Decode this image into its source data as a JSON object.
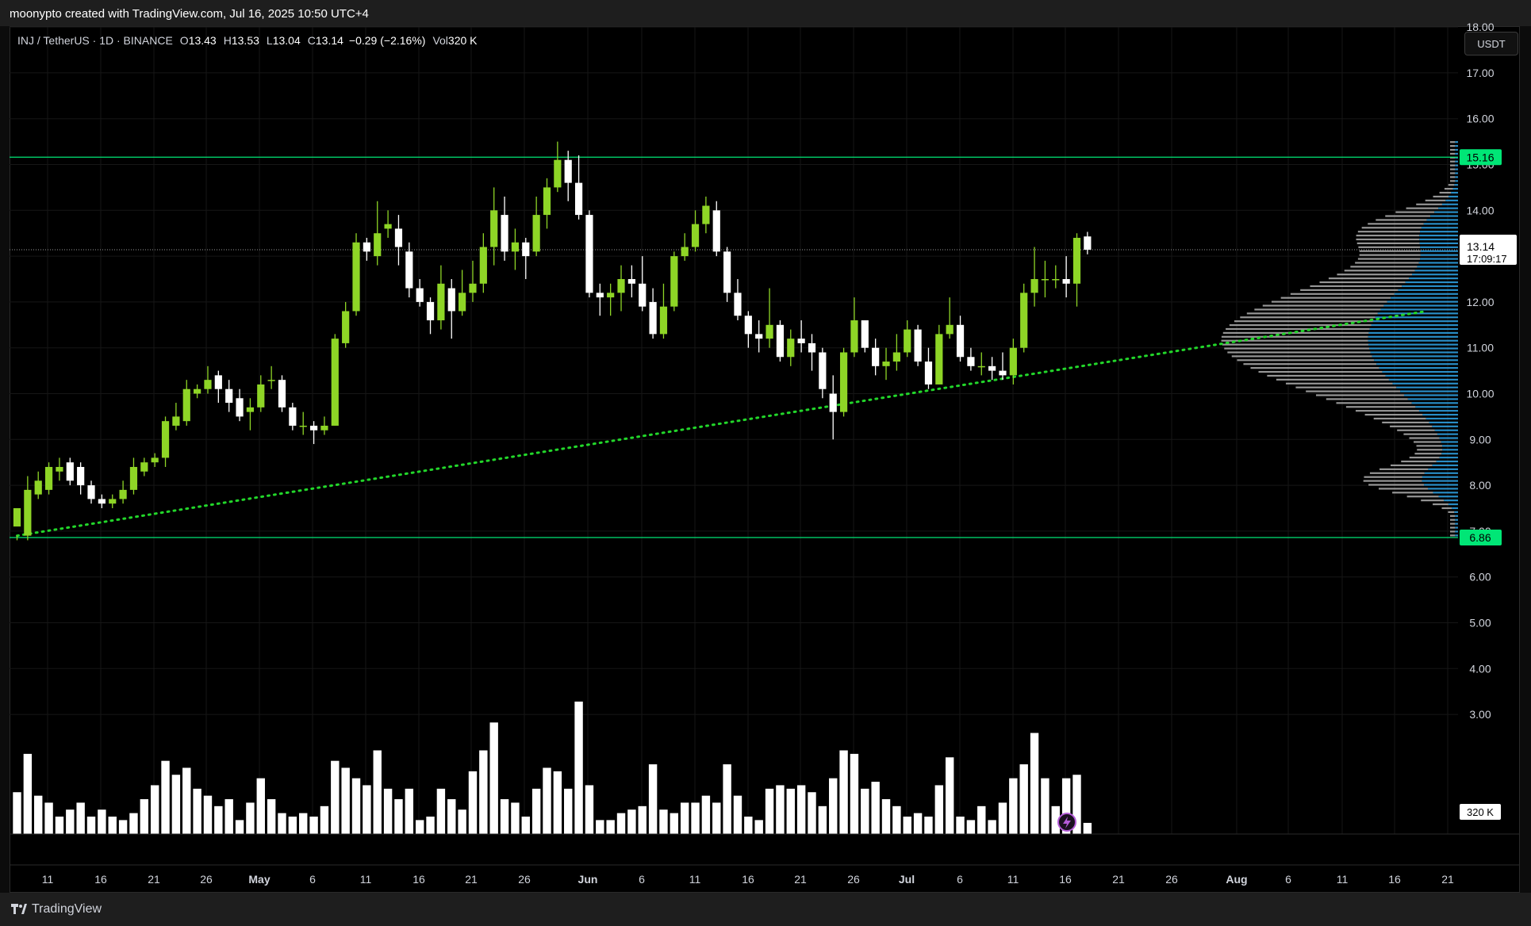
{
  "topbar": {
    "caption": "moonypto created with TradingView.com, Jul 16, 2025 10:50 UTC+4"
  },
  "legend": {
    "symbol": "INJ / TetherUS · 1D · BINANCE",
    "o_label": "O",
    "o": "13.43",
    "h_label": "H",
    "h": "13.53",
    "l_label": "L",
    "l": "13.04",
    "c_label": "C",
    "c": "13.14",
    "change": "−0.29 (−2.16%)",
    "vol_label": "Vol",
    "vol": "320 K"
  },
  "currency_button": "USDT",
  "footer": {
    "brand": "TradingView",
    "logo_icon": "tradingview-logo-icon"
  },
  "colors": {
    "up": "#8ed526",
    "down": "#ffffff",
    "level": "#00e676",
    "trend": "#22d62a",
    "vp_blue": "#2d9cdb",
    "vp_gray": "#b0b0b0"
  },
  "chart_data": {
    "type": "candlestick",
    "y_axis": {
      "ticks": [
        "18.00",
        "17.00",
        "16.00",
        "15.00",
        "14.00",
        "13.00",
        "12.00",
        "11.00",
        "10.00",
        "9.00",
        "8.00",
        "7.00",
        "6.00",
        "5.00",
        "4.00",
        "3.00"
      ],
      "range": [
        2.0,
        18.7
      ]
    },
    "x_axis": {
      "labels": [
        "11",
        "16",
        "21",
        "26",
        "May",
        "6",
        "11",
        "16",
        "21",
        "26",
        "Jun",
        "6",
        "11",
        "16",
        "21",
        "26",
        "Jul",
        "6",
        "11",
        "16",
        "21",
        "26",
        "Aug",
        "6",
        "11",
        "16",
        "21"
      ]
    },
    "price_labels": {
      "resistance": "15.16",
      "support": "6.86",
      "last": "13.14",
      "countdown": "17:09:17",
      "volume": "320 K"
    },
    "levels": [
      {
        "name": "resistance",
        "value": 15.16
      },
      {
        "name": "support",
        "value": 6.86
      }
    ],
    "trendline": {
      "from": {
        "date": "Apr 8",
        "value": 6.9
      },
      "to": {
        "date": "Aug 19",
        "value": 11.8
      }
    },
    "last_price": 13.14,
    "volume_max": 5.8,
    "candles": [
      [
        7.1,
        7.5,
        6.9,
        6.8,
        1.2
      ],
      [
        6.9,
        7.9,
        8.2,
        6.8,
        2.3
      ],
      [
        7.8,
        8.1,
        8.3,
        7.7,
        1.1
      ],
      [
        7.9,
        8.4,
        8.5,
        7.8,
        0.9
      ],
      [
        8.3,
        8.4,
        8.6,
        8.1,
        0.5
      ],
      [
        8.5,
        8.1,
        8.6,
        8.0,
        0.7
      ],
      [
        8.4,
        8.0,
        8.5,
        7.8,
        0.9
      ],
      [
        8.0,
        7.7,
        8.1,
        7.6,
        0.5
      ],
      [
        7.7,
        7.6,
        7.8,
        7.5,
        0.7
      ],
      [
        7.6,
        7.7,
        7.8,
        7.5,
        0.5
      ],
      [
        7.7,
        7.9,
        8.1,
        7.6,
        0.4
      ],
      [
        7.9,
        8.4,
        8.6,
        7.8,
        0.6
      ],
      [
        8.3,
        8.5,
        8.6,
        8.2,
        1.0
      ],
      [
        8.5,
        8.6,
        8.7,
        8.4,
        1.4
      ],
      [
        8.6,
        9.4,
        9.5,
        8.4,
        2.1
      ],
      [
        9.3,
        9.5,
        9.8,
        9.2,
        1.7
      ],
      [
        9.4,
        10.1,
        10.3,
        9.3,
        1.9
      ],
      [
        10.0,
        10.1,
        10.2,
        9.9,
        1.3
      ],
      [
        10.1,
        10.3,
        10.6,
        10.0,
        1.1
      ],
      [
        10.4,
        10.1,
        10.5,
        9.8,
        0.8
      ],
      [
        10.1,
        9.8,
        10.3,
        9.6,
        1.0
      ],
      [
        9.9,
        9.5,
        10.1,
        9.4,
        0.4
      ],
      [
        9.6,
        9.7,
        9.9,
        9.2,
        0.9
      ],
      [
        9.7,
        10.2,
        10.4,
        9.6,
        1.6
      ],
      [
        10.3,
        10.3,
        10.6,
        10.1,
        1.0
      ],
      [
        10.3,
        9.7,
        10.4,
        9.6,
        0.6
      ],
      [
        9.7,
        9.3,
        9.8,
        9.2,
        0.5
      ],
      [
        9.3,
        9.3,
        9.6,
        9.1,
        0.6
      ],
      [
        9.3,
        9.2,
        9.4,
        8.9,
        0.5
      ],
      [
        9.2,
        9.3,
        9.5,
        9.1,
        0.8
      ],
      [
        9.3,
        11.2,
        11.3,
        9.3,
        2.1
      ],
      [
        11.1,
        11.8,
        12.0,
        11.0,
        1.9
      ],
      [
        11.8,
        13.3,
        13.5,
        11.7,
        1.6
      ],
      [
        13.3,
        13.1,
        13.4,
        12.9,
        1.4
      ],
      [
        13.0,
        13.5,
        14.2,
        12.8,
        2.4
      ],
      [
        13.6,
        13.7,
        14.0,
        13.4,
        1.3
      ],
      [
        13.6,
        13.2,
        13.9,
        12.8,
        1.0
      ],
      [
        13.1,
        12.3,
        13.3,
        12.1,
        1.3
      ],
      [
        12.3,
        12.0,
        12.5,
        11.9,
        0.4
      ],
      [
        12.0,
        11.6,
        12.1,
        11.3,
        0.5
      ],
      [
        11.6,
        12.4,
        12.8,
        11.4,
        1.3
      ],
      [
        12.3,
        11.8,
        12.5,
        11.2,
        1.0
      ],
      [
        11.8,
        12.2,
        12.7,
        11.7,
        0.7
      ],
      [
        12.2,
        12.4,
        12.9,
        12.0,
        1.8
      ],
      [
        12.4,
        13.2,
        13.5,
        12.2,
        2.4
      ],
      [
        13.2,
        14.0,
        14.5,
        12.8,
        3.2
      ],
      [
        13.9,
        13.1,
        14.3,
        12.9,
        1.0
      ],
      [
        13.1,
        13.3,
        13.6,
        12.7,
        0.9
      ],
      [
        13.3,
        13.0,
        13.4,
        12.5,
        0.5
      ],
      [
        13.1,
        13.9,
        14.3,
        13.0,
        1.3
      ],
      [
        13.9,
        14.5,
        14.7,
        13.6,
        1.9
      ],
      [
        14.5,
        15.1,
        15.5,
        14.4,
        1.8
      ],
      [
        15.1,
        14.6,
        15.3,
        14.2,
        1.3
      ],
      [
        14.6,
        13.9,
        15.2,
        13.8,
        3.8
      ],
      [
        13.9,
        12.2,
        14.0,
        12.1,
        1.4
      ],
      [
        12.2,
        12.1,
        12.4,
        11.7,
        0.4
      ],
      [
        12.1,
        12.2,
        12.4,
        11.7,
        0.4
      ],
      [
        12.2,
        12.5,
        12.8,
        11.8,
        0.6
      ],
      [
        12.5,
        12.4,
        12.8,
        12.1,
        0.7
      ],
      [
        12.4,
        11.9,
        13.0,
        11.8,
        0.8
      ],
      [
        12.0,
        11.3,
        12.3,
        11.2,
        2.0
      ],
      [
        11.3,
        11.9,
        12.4,
        11.2,
        0.7
      ],
      [
        11.9,
        13.0,
        13.1,
        11.8,
        0.6
      ],
      [
        13.0,
        13.2,
        13.5,
        12.9,
        0.9
      ],
      [
        13.2,
        13.7,
        14.0,
        13.1,
        0.9
      ],
      [
        13.7,
        14.1,
        14.3,
        13.5,
        1.1
      ],
      [
        14.0,
        13.1,
        14.2,
        13.0,
        0.9
      ],
      [
        13.1,
        12.2,
        13.2,
        12.0,
        2.0
      ],
      [
        12.2,
        11.7,
        12.5,
        11.6,
        1.1
      ],
      [
        11.7,
        11.3,
        11.8,
        11.0,
        0.5
      ],
      [
        11.3,
        11.2,
        11.6,
        10.9,
        0.4
      ],
      [
        11.2,
        11.5,
        12.3,
        11.0,
        1.3
      ],
      [
        11.5,
        10.8,
        11.6,
        10.7,
        1.4
      ],
      [
        10.8,
        11.2,
        11.4,
        10.6,
        1.3
      ],
      [
        11.2,
        11.1,
        11.6,
        10.9,
        1.4
      ],
      [
        11.1,
        10.9,
        11.3,
        10.5,
        1.2
      ],
      [
        10.9,
        10.1,
        11.0,
        9.9,
        0.8
      ],
      [
        10.0,
        9.6,
        10.4,
        9.0,
        1.6
      ],
      [
        9.6,
        10.9,
        11.0,
        9.5,
        2.4
      ],
      [
        10.9,
        11.6,
        12.1,
        10.8,
        2.3
      ],
      [
        11.6,
        11.0,
        11.6,
        10.9,
        1.3
      ],
      [
        11.0,
        10.6,
        11.2,
        10.4,
        1.5
      ],
      [
        10.6,
        10.7,
        11.0,
        10.3,
        1.0
      ],
      [
        10.7,
        10.9,
        11.3,
        10.5,
        0.8
      ],
      [
        10.9,
        11.4,
        11.6,
        10.8,
        0.5
      ],
      [
        11.4,
        10.7,
        11.5,
        10.6,
        0.6
      ],
      [
        10.7,
        10.2,
        11.0,
        10.1,
        0.5
      ],
      [
        10.2,
        11.3,
        11.5,
        10.2,
        1.4
      ],
      [
        11.3,
        11.5,
        12.1,
        11.2,
        2.2
      ],
      [
        11.5,
        10.8,
        11.7,
        10.7,
        0.5
      ],
      [
        10.8,
        10.6,
        11.0,
        10.5,
        0.4
      ],
      [
        10.6,
        10.6,
        10.9,
        10.4,
        0.8
      ],
      [
        10.6,
        10.5,
        10.8,
        10.3,
        0.4
      ],
      [
        10.5,
        10.4,
        10.9,
        10.3,
        0.9
      ],
      [
        10.4,
        11.0,
        11.2,
        10.2,
        1.6
      ],
      [
        11.0,
        12.2,
        12.4,
        10.9,
        2.0
      ],
      [
        12.2,
        12.5,
        13.2,
        11.9,
        2.9
      ],
      [
        12.5,
        12.5,
        12.9,
        12.1,
        1.6
      ],
      [
        12.5,
        12.5,
        12.8,
        12.3,
        0.8
      ],
      [
        12.5,
        12.4,
        13.0,
        12.1,
        1.6
      ],
      [
        12.4,
        13.4,
        13.5,
        11.9,
        1.7
      ],
      [
        13.43,
        13.14,
        13.53,
        13.04,
        0.32
      ]
    ]
  }
}
